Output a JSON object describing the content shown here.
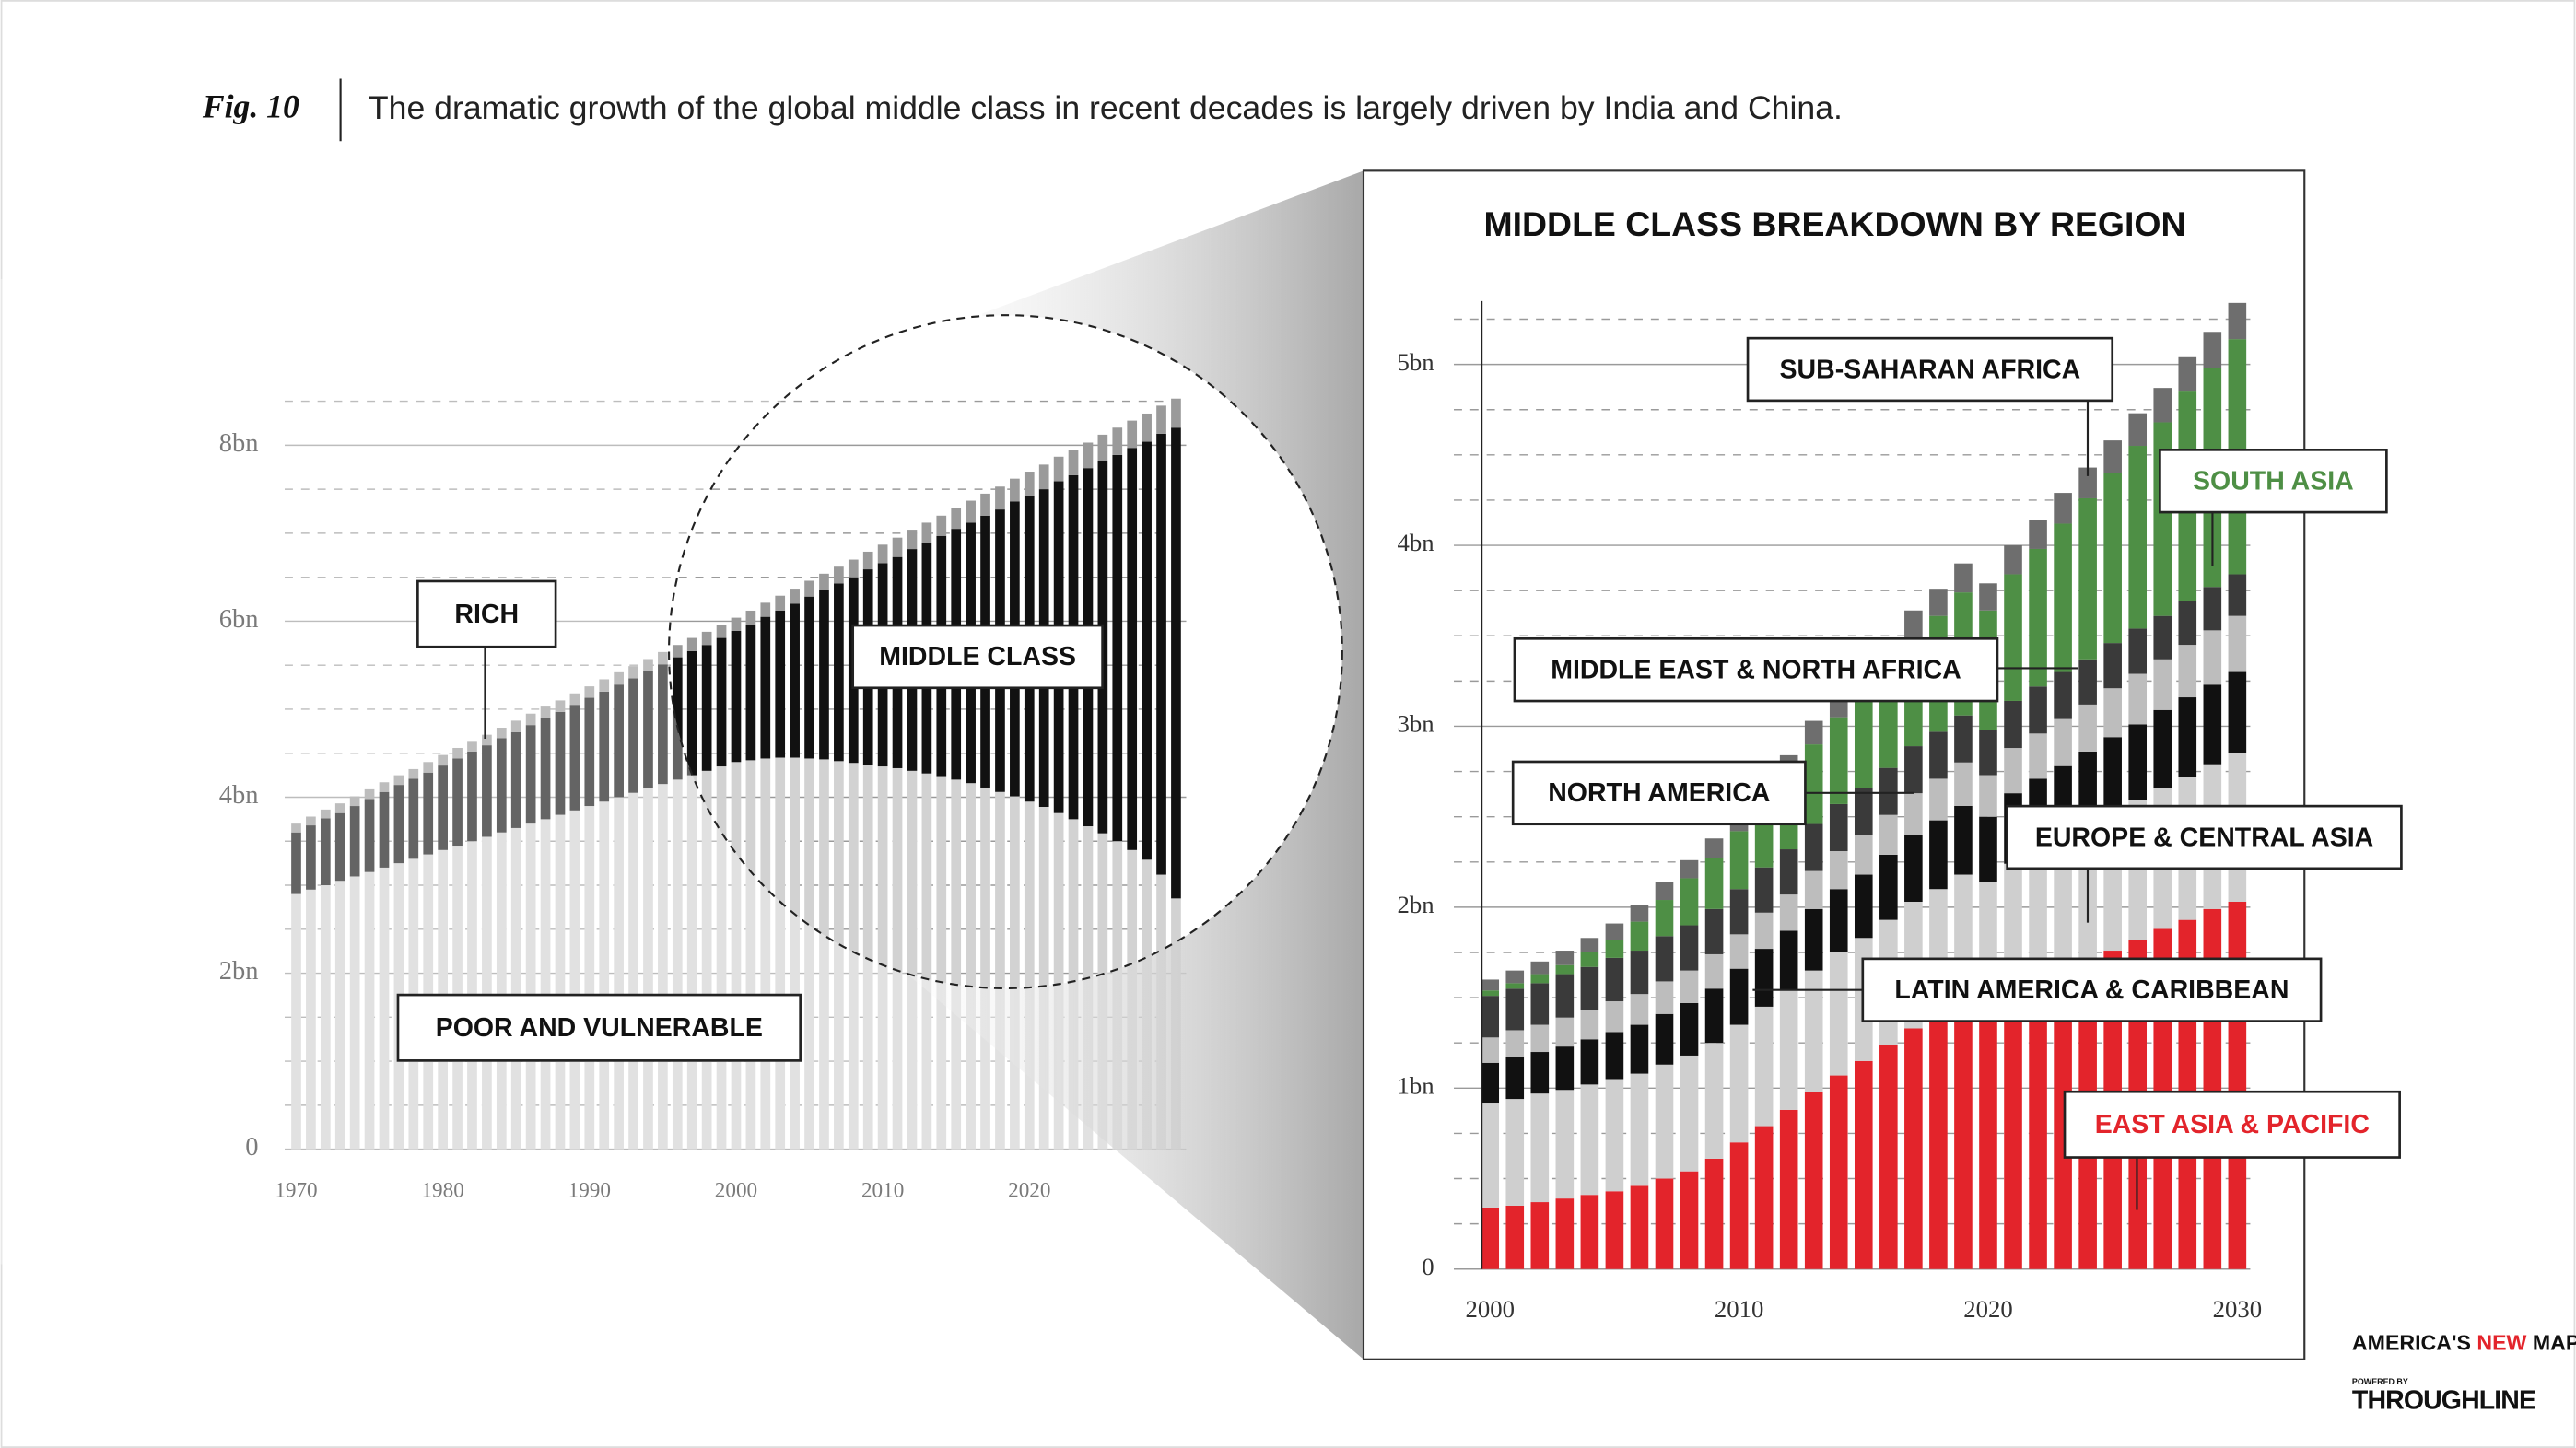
{
  "figure": {
    "label": "Fig. 10",
    "caption": "The dramatic growth of the global middle class in recent decades is largely driven by India and China."
  },
  "chart_data": [
    {
      "type": "bar",
      "stacked": true,
      "grid": true,
      "x": [
        1970,
        1971,
        1972,
        1973,
        1974,
        1975,
        1976,
        1977,
        1978,
        1979,
        1980,
        1981,
        1982,
        1983,
        1984,
        1985,
        1986,
        1987,
        1988,
        1989,
        1990,
        1991,
        1992,
        1993,
        1994,
        1995,
        1996,
        1997,
        1998,
        1999,
        2000,
        2001,
        2002,
        2003,
        2004,
        2005,
        2006,
        2007,
        2008,
        2009,
        2010,
        2011,
        2012,
        2013,
        2014,
        2015,
        2016,
        2017,
        2018,
        2019,
        2020,
        2021,
        2022,
        2023,
        2024,
        2025,
        2026,
        2027,
        2028,
        2029,
        2030
      ],
      "xticks": [
        1970,
        1980,
        1990,
        2000,
        2010,
        2020
      ],
      "ylim": [
        0,
        8.5
      ],
      "yticks": [
        0,
        {
          "value": 2,
          "label": "2bn"
        },
        {
          "value": 4,
          "label": "4bn"
        },
        {
          "value": 6,
          "label": "6bn"
        },
        {
          "value": 8,
          "label": "8bn"
        }
      ],
      "minor_yticks": [
        0.5,
        1,
        1.5,
        2.5,
        3,
        3.5,
        4.5,
        5,
        5.5,
        6.5,
        7,
        7.5,
        8.5
      ],
      "series": [
        {
          "name": "POOR AND VULNERABLE",
          "color": "#d2d2d2",
          "values": [
            2.9,
            2.95,
            3.0,
            3.05,
            3.1,
            3.15,
            3.2,
            3.25,
            3.3,
            3.35,
            3.4,
            3.45,
            3.5,
            3.55,
            3.6,
            3.65,
            3.7,
            3.75,
            3.8,
            3.85,
            3.9,
            3.95,
            4.0,
            4.05,
            4.1,
            4.15,
            4.2,
            4.25,
            4.3,
            4.35,
            4.4,
            4.42,
            4.44,
            4.45,
            4.45,
            4.44,
            4.43,
            4.41,
            4.39,
            4.37,
            4.35,
            4.33,
            4.3,
            4.27,
            4.24,
            4.2,
            4.16,
            4.11,
            4.06,
            4.01,
            3.95,
            3.89,
            3.82,
            3.75,
            3.67,
            3.59,
            3.5,
            3.4,
            3.29,
            3.12,
            2.85
          ]
        },
        {
          "name": "MIDDLE CLASS",
          "color": "#111111",
          "values": [
            0.7,
            0.73,
            0.76,
            0.77,
            0.8,
            0.83,
            0.86,
            0.89,
            0.91,
            0.93,
            0.96,
            0.99,
            1.02,
            1.04,
            1.07,
            1.09,
            1.12,
            1.15,
            1.17,
            1.2,
            1.23,
            1.25,
            1.28,
            1.3,
            1.33,
            1.36,
            1.39,
            1.41,
            1.43,
            1.46,
            1.49,
            1.54,
            1.61,
            1.67,
            1.75,
            1.84,
            1.92,
            2.02,
            2.11,
            2.22,
            2.31,
            2.4,
            2.52,
            2.62,
            2.73,
            2.85,
            2.96,
            3.09,
            3.21,
            3.35,
            3.48,
            3.61,
            3.77,
            3.91,
            4.07,
            4.23,
            4.39,
            4.57,
            4.75,
            5.01,
            5.35
          ]
        },
        {
          "name": "RICH",
          "color": "#9a9a9a",
          "values": [
            0.1,
            0.1,
            0.1,
            0.11,
            0.11,
            0.11,
            0.11,
            0.11,
            0.11,
            0.12,
            0.12,
            0.12,
            0.12,
            0.12,
            0.12,
            0.13,
            0.13,
            0.13,
            0.13,
            0.13,
            0.13,
            0.14,
            0.14,
            0.14,
            0.14,
            0.14,
            0.14,
            0.15,
            0.15,
            0.15,
            0.15,
            0.16,
            0.16,
            0.17,
            0.17,
            0.18,
            0.19,
            0.19,
            0.2,
            0.2,
            0.21,
            0.22,
            0.22,
            0.23,
            0.23,
            0.24,
            0.25,
            0.25,
            0.26,
            0.26,
            0.27,
            0.28,
            0.28,
            0.29,
            0.29,
            0.3,
            0.31,
            0.31,
            0.32,
            0.32,
            0.33
          ]
        }
      ]
    },
    {
      "type": "bar",
      "stacked": true,
      "grid": true,
      "title": "MIDDLE CLASS BREAKDOWN BY REGION",
      "x": [
        2000,
        2001,
        2002,
        2003,
        2004,
        2005,
        2006,
        2007,
        2008,
        2009,
        2010,
        2011,
        2012,
        2013,
        2014,
        2015,
        2016,
        2017,
        2018,
        2019,
        2020,
        2021,
        2022,
        2023,
        2024,
        2025,
        2026,
        2027,
        2028,
        2029,
        2030
      ],
      "xticks": [
        2000,
        2010,
        2020,
        2030
      ],
      "ylim": [
        0,
        5.35
      ],
      "yticks": [
        0,
        {
          "value": 1,
          "label": "1bn"
        },
        {
          "value": 2,
          "label": "2bn"
        },
        {
          "value": 3,
          "label": "3bn"
        },
        {
          "value": 4,
          "label": "4bn"
        },
        {
          "value": 5,
          "label": "5bn"
        }
      ],
      "minor_yticks": [
        0.25,
        0.5,
        0.75,
        1.25,
        1.5,
        1.75,
        2.25,
        2.5,
        2.75,
        3.25,
        3.5,
        3.75,
        4.25,
        4.5,
        4.75,
        5.25
      ],
      "series": [
        {
          "name": "EAST ASIA & PACIFIC",
          "color": "#e3242b",
          "values": [
            0.34,
            0.35,
            0.37,
            0.39,
            0.41,
            0.43,
            0.46,
            0.5,
            0.54,
            0.61,
            0.7,
            0.79,
            0.88,
            0.98,
            1.07,
            1.15,
            1.24,
            1.33,
            1.4,
            1.47,
            1.45,
            1.52,
            1.58,
            1.64,
            1.7,
            1.76,
            1.82,
            1.88,
            1.93,
            1.99,
            2.03
          ]
        },
        {
          "name": "EUROPE & CENTRAL ASIA",
          "color": "#cfcfcf",
          "values": [
            0.58,
            0.59,
            0.6,
            0.6,
            0.61,
            0.62,
            0.62,
            0.63,
            0.64,
            0.64,
            0.65,
            0.66,
            0.66,
            0.67,
            0.68,
            0.68,
            0.69,
            0.7,
            0.7,
            0.71,
            0.69,
            0.72,
            0.73,
            0.74,
            0.75,
            0.76,
            0.77,
            0.78,
            0.79,
            0.8,
            0.82
          ]
        },
        {
          "name": "LATIN AMERICA & CARIBBEAN",
          "color": "#111111",
          "values": [
            0.22,
            0.23,
            0.23,
            0.24,
            0.25,
            0.26,
            0.27,
            0.28,
            0.29,
            0.3,
            0.31,
            0.32,
            0.33,
            0.34,
            0.35,
            0.35,
            0.36,
            0.37,
            0.38,
            0.38,
            0.36,
            0.39,
            0.4,
            0.4,
            0.41,
            0.42,
            0.42,
            0.43,
            0.44,
            0.44,
            0.45
          ]
        },
        {
          "name": "NORTH AMERICA",
          "color": "#bdbdbd",
          "values": [
            0.14,
            0.15,
            0.15,
            0.16,
            0.16,
            0.17,
            0.17,
            0.18,
            0.18,
            0.19,
            0.19,
            0.2,
            0.2,
            0.21,
            0.21,
            0.22,
            0.22,
            0.23,
            0.23,
            0.24,
            0.23,
            0.25,
            0.25,
            0.26,
            0.26,
            0.27,
            0.28,
            0.28,
            0.29,
            0.3,
            0.31
          ]
        },
        {
          "name": "MIDDLE EAST & NORTH AFRICA",
          "color": "#3a3a3a",
          "values": [
            0.23,
            0.23,
            0.23,
            0.24,
            0.24,
            0.24,
            0.24,
            0.25,
            0.25,
            0.25,
            0.25,
            0.25,
            0.25,
            0.26,
            0.26,
            0.26,
            0.26,
            0.26,
            0.26,
            0.26,
            0.25,
            0.26,
            0.26,
            0.26,
            0.25,
            0.25,
            0.25,
            0.24,
            0.24,
            0.24,
            0.23
          ]
        },
        {
          "name": "SOUTH ASIA",
          "color": "#4e8f45",
          "values": [
            0.03,
            0.03,
            0.05,
            0.05,
            0.08,
            0.1,
            0.16,
            0.2,
            0.26,
            0.28,
            0.32,
            0.36,
            0.4,
            0.44,
            0.48,
            0.52,
            0.56,
            0.6,
            0.64,
            0.68,
            0.66,
            0.7,
            0.76,
            0.82,
            0.89,
            0.94,
            1.01,
            1.07,
            1.16,
            1.21,
            1.3
          ]
        },
        {
          "name": "SUB-SAHARAN AFRICA",
          "color": "#6e6e6e",
          "values": [
            0.06,
            0.07,
            0.07,
            0.08,
            0.08,
            0.09,
            0.09,
            0.1,
            0.1,
            0.11,
            0.11,
            0.12,
            0.12,
            0.13,
            0.13,
            0.14,
            0.14,
            0.15,
            0.15,
            0.16,
            0.15,
            0.16,
            0.16,
            0.17,
            0.17,
            0.18,
            0.18,
            0.19,
            0.19,
            0.2,
            0.2
          ]
        }
      ]
    }
  ],
  "brand": {
    "name": [
      "AMERICA'S",
      "NEW",
      "MAP"
    ],
    "powered_by": "POWERED BY",
    "company": "THROUGHLINE"
  }
}
